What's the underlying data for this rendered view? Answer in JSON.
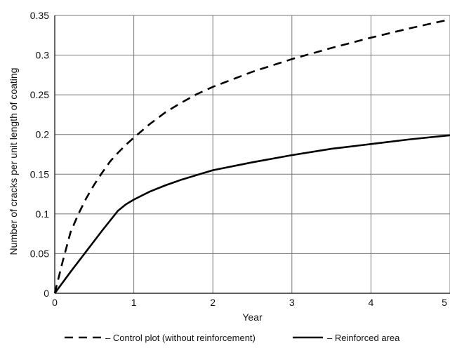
{
  "chart_data": {
    "type": "line",
    "title": "",
    "xlabel": "Year",
    "ylabel": "Number of cracks per unit length of coating",
    "xlim": [
      0,
      5
    ],
    "ylim": [
      0,
      0.35
    ],
    "x_ticks": [
      "0",
      "1",
      "2",
      "3",
      "4",
      "5"
    ],
    "y_ticks": [
      "0",
      "0.05",
      "0.1",
      "0.15",
      "0.2",
      "0.25",
      "0.3",
      "0.35"
    ],
    "grid": true,
    "legend_position": "bottom",
    "series": [
      {
        "name": "– Control plot (without reinforcement)",
        "style": "dashed",
        "color": "#000000",
        "x": [
          0,
          0.1,
          0.2,
          0.3,
          0.4,
          0.5,
          0.6,
          0.7,
          0.8,
          0.9,
          1.0,
          1.2,
          1.4,
          1.6,
          1.8,
          2.0,
          2.5,
          3.0,
          3.5,
          4.0,
          4.5,
          5.0
        ],
        "y": [
          0,
          0.04,
          0.077,
          0.1,
          0.12,
          0.137,
          0.152,
          0.166,
          0.177,
          0.187,
          0.196,
          0.213,
          0.228,
          0.24,
          0.251,
          0.26,
          0.279,
          0.295,
          0.309,
          0.322,
          0.334,
          0.345
        ]
      },
      {
        "name": "– Reinforced area",
        "style": "solid",
        "color": "#000000",
        "x": [
          0,
          0.2,
          0.4,
          0.6,
          0.8,
          0.9,
          1.0,
          1.2,
          1.4,
          1.6,
          1.8,
          2.0,
          2.5,
          3.0,
          3.5,
          4.0,
          4.5,
          5.0
        ],
        "y": [
          0,
          0.027,
          0.053,
          0.079,
          0.104,
          0.112,
          0.118,
          0.128,
          0.136,
          0.143,
          0.149,
          0.155,
          0.165,
          0.174,
          0.182,
          0.188,
          0.194,
          0.199
        ]
      }
    ]
  }
}
